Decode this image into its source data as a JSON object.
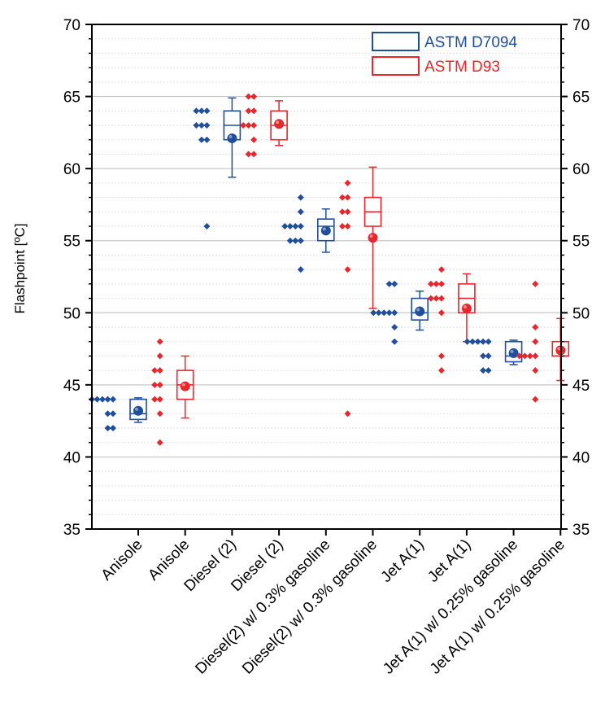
{
  "chart_data": {
    "type": "box",
    "ylabel": "Flashpoint [ºC]",
    "ylim": [
      35,
      70
    ],
    "yticks": [
      "35",
      "40",
      "45",
      "50",
      "55",
      "60",
      "65",
      "70"
    ],
    "grid": "horizontal major and minor",
    "legend_position": "top-right",
    "categories": [
      "Anisole",
      "Anisole",
      "Diesel (2)",
      "Diesel (2)",
      "Diesel(2) w/ 0.3% gasoline",
      "Diesel(2) w/ 0.3% gasoline",
      "Jet A(1)",
      "Jet A(1)",
      "Jet A(1) w/ 0.25% gasoline",
      "Jet A(1) w/ 0.25% gasoline"
    ],
    "series": [
      {
        "name": "ASTM D7094",
        "color": "#1f4e9c"
      },
      {
        "name": "ASTM D93",
        "color": "#e8262b"
      }
    ],
    "groups": [
      {
        "series": 0,
        "points": [
          44,
          44,
          44,
          44,
          44,
          43,
          43,
          42,
          42
        ],
        "box": [
          42.6,
          43.0,
          44.0
        ],
        "whisker": [
          42.4,
          44.1
        ],
        "mean": 43.2
      },
      {
        "series": 1,
        "points": [
          48,
          47,
          46,
          46,
          45,
          45,
          44,
          44,
          43,
          41
        ],
        "box": [
          44.0,
          45.0,
          46.0
        ],
        "whisker": [
          42.7,
          47.0
        ],
        "mean": 44.9
      },
      {
        "series": 0,
        "points": [
          64,
          64,
          64,
          63,
          63,
          63,
          62,
          62,
          56
        ],
        "box": [
          62.0,
          63.0,
          64.0
        ],
        "whisker": [
          59.4,
          64.9
        ],
        "mean": 62.1
      },
      {
        "series": 1,
        "points": [
          65,
          65,
          64,
          64,
          63,
          63,
          63,
          62,
          61,
          61
        ],
        "box": [
          62.0,
          63.0,
          64.0
        ],
        "whisker": [
          61.6,
          64.7
        ],
        "mean": 63.1
      },
      {
        "series": 0,
        "points": [
          58,
          57,
          56,
          56,
          56,
          56,
          55,
          55,
          55,
          53
        ],
        "box": [
          55.0,
          56.0,
          56.5
        ],
        "whisker": [
          54.2,
          57.2
        ],
        "mean": 55.7
      },
      {
        "series": 1,
        "points": [
          59,
          58,
          58,
          57,
          57,
          56,
          56,
          53,
          43
        ],
        "box": [
          56.0,
          57.0,
          58.0
        ],
        "whisker": [
          50.3,
          60.1
        ],
        "mean": 55.2
      },
      {
        "series": 0,
        "points": [
          52,
          52,
          50,
          50,
          50,
          50,
          50,
          49,
          48
        ],
        "box": [
          49.5,
          50.0,
          51.0
        ],
        "whisker": [
          48.8,
          51.5
        ],
        "mean": 50.1
      },
      {
        "series": 1,
        "points": [
          53,
          52,
          52,
          52,
          51,
          51,
          51,
          50,
          47,
          46
        ],
        "box": [
          50.0,
          51.0,
          52.0
        ],
        "whisker": [
          48.0,
          52.7
        ],
        "mean": 50.3
      },
      {
        "series": 0,
        "points": [
          48,
          48,
          48,
          48,
          48,
          47,
          47,
          46,
          46
        ],
        "box": [
          46.6,
          47.0,
          48.0
        ],
        "whisker": [
          46.4,
          48.1
        ],
        "mean": 47.2
      },
      {
        "series": 1,
        "points": [
          52,
          49,
          48,
          47,
          47,
          47,
          47,
          46,
          44
        ],
        "box": [
          47.0,
          47.0,
          48.0
        ],
        "whisker": [
          45.3,
          49.6
        ],
        "mean": 47.4
      }
    ]
  }
}
